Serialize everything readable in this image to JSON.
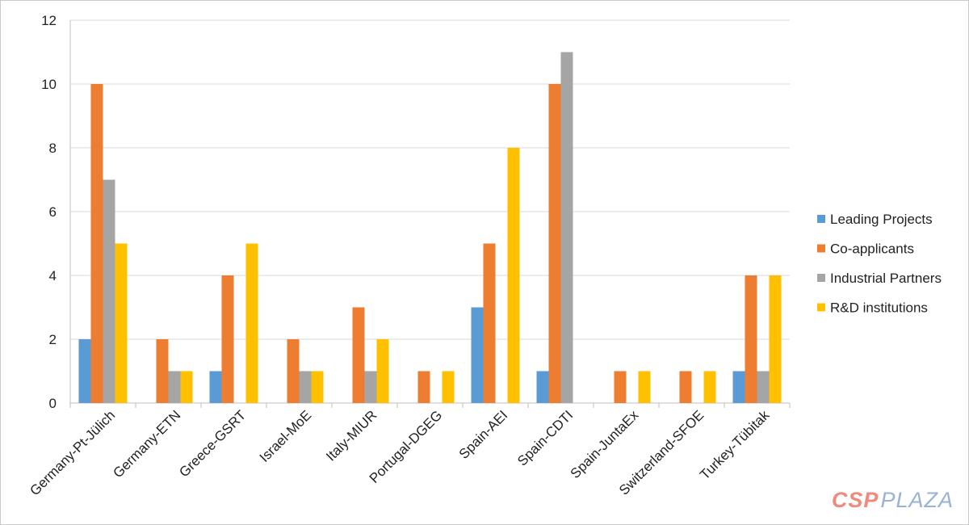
{
  "chart_data": {
    "type": "bar",
    "categories": [
      "Germany-Pt-Jülich",
      "Germany-ETN",
      "Greece-GSRT",
      "Israel-MoE",
      "Italy-MIUR",
      "Portugal-DGEG",
      "Spain-AEI",
      "Spain-CDTI",
      "Spain-JuntaEx",
      "Switzerland-SFOE",
      "Turkey-Tübitak"
    ],
    "series": [
      {
        "name": "Leading Projects",
        "color": "#5b9bd5",
        "values": [
          2,
          0,
          1,
          0,
          0,
          0,
          3,
          1,
          0,
          0,
          1
        ]
      },
      {
        "name": "Co-applicants",
        "color": "#ed7d31",
        "values": [
          10,
          2,
          4,
          2,
          3,
          1,
          5,
          10,
          1,
          1,
          4
        ]
      },
      {
        "name": "Industrial Partners",
        "color": "#a5a5a5",
        "values": [
          7,
          1,
          0,
          1,
          1,
          0,
          0,
          11,
          0,
          0,
          1
        ]
      },
      {
        "name": "R&D institutions",
        "color": "#ffc000",
        "values": [
          5,
          1,
          5,
          1,
          2,
          1,
          8,
          0,
          1,
          1,
          4
        ]
      }
    ],
    "title": "",
    "xlabel": "",
    "ylabel": "",
    "ylim": [
      0,
      12
    ],
    "yticks": [
      0,
      2,
      4,
      6,
      8,
      10,
      12
    ],
    "grid": true,
    "legend_position": "right"
  },
  "watermark": {
    "part1": "CSP",
    "part2": "PLAZA"
  }
}
